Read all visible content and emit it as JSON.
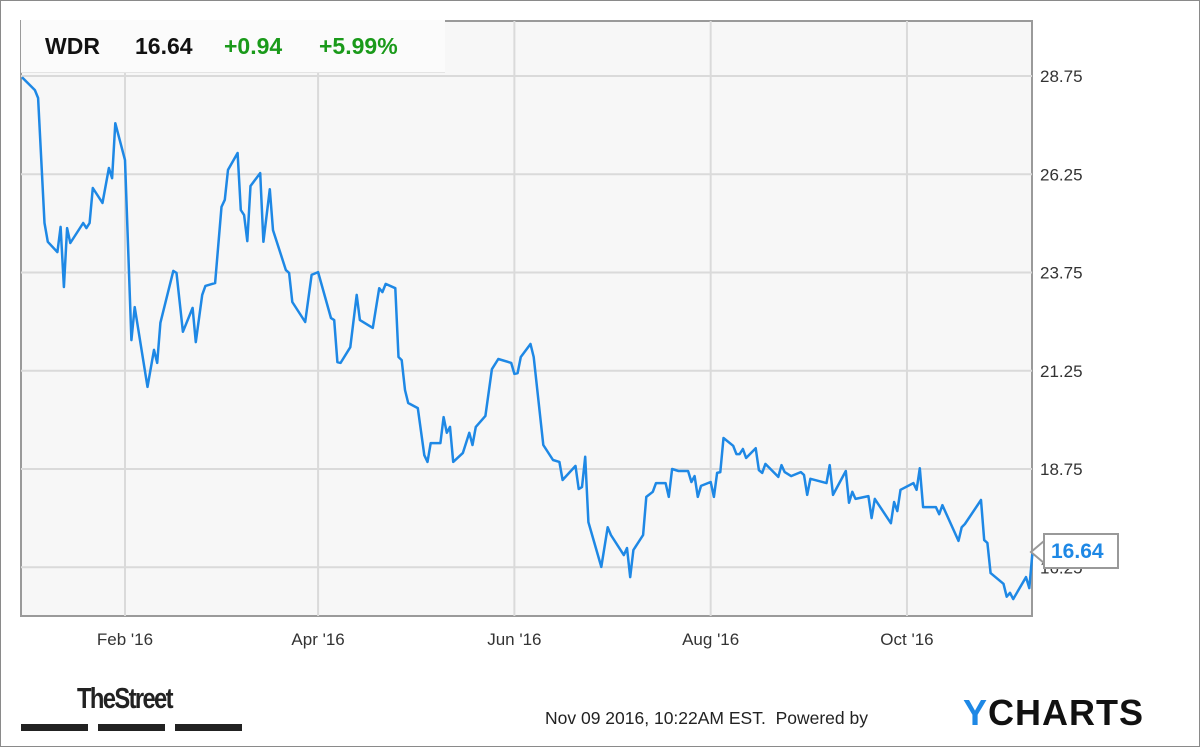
{
  "header": {
    "ticker": "WDR",
    "price": "16.64",
    "change": "+0.94",
    "change_pct": "+5.99%"
  },
  "colors": {
    "line": "#1e88e5",
    "positive": "#1a9a1a",
    "plot_bg": "#f7f7f7",
    "grid": "#d8d8d8"
  },
  "callout": {
    "value": "16.64"
  },
  "footer": {
    "timestamp": "Nov 09 2016, 10:22AM EST.",
    "powered_by": "Powered by",
    "brand_left": "TheStreet",
    "brand_right_y": "Y",
    "brand_right_rest": "CHARTS"
  },
  "chart_data": {
    "type": "line",
    "title": "",
    "xlabel": "",
    "ylabel": "",
    "ylim": [
      15.0,
      30.15
    ],
    "xlim": [
      "2015-12-31",
      "2016-11-09"
    ],
    "grid": true,
    "y_axis_position": "right",
    "yticks": [
      "28.75",
      "26.25",
      "23.75",
      "21.25",
      "18.75",
      "16.25"
    ],
    "xticks": [
      {
        "date": "2016-02-01",
        "label": "Feb '16"
      },
      {
        "date": "2016-04-01",
        "label": "Apr '16"
      },
      {
        "date": "2016-06-01",
        "label": "Jun '16"
      },
      {
        "date": "2016-08-01",
        "label": "Aug '16"
      },
      {
        "date": "2016-10-01",
        "label": "Oct '16"
      }
    ],
    "series": [
      {
        "ticker": "WDR",
        "points": [
          [
            "2015-12-31",
            28.72
          ],
          [
            "2016-01-04",
            28.39
          ],
          [
            "2016-01-05",
            28.19
          ],
          [
            "2016-01-07",
            25.01
          ],
          [
            "2016-01-08",
            24.53
          ],
          [
            "2016-01-11",
            24.27
          ],
          [
            "2016-01-12",
            24.91
          ],
          [
            "2016-01-13",
            23.38
          ],
          [
            "2016-01-14",
            24.88
          ],
          [
            "2016-01-15",
            24.5
          ],
          [
            "2016-01-19",
            25.01
          ],
          [
            "2016-01-20",
            24.88
          ],
          [
            "2016-01-21",
            25.01
          ],
          [
            "2016-01-22",
            25.9
          ],
          [
            "2016-01-25",
            25.52
          ],
          [
            "2016-01-27",
            26.41
          ],
          [
            "2016-01-28",
            26.15
          ],
          [
            "2016-01-29",
            27.55
          ],
          [
            "2016-02-01",
            26.61
          ],
          [
            "2016-02-03",
            22.03
          ],
          [
            "2016-02-04",
            22.87
          ],
          [
            "2016-02-08",
            20.84
          ],
          [
            "2016-02-10",
            21.78
          ],
          [
            "2016-02-11",
            21.45
          ],
          [
            "2016-02-12",
            22.47
          ],
          [
            "2016-02-16",
            23.79
          ],
          [
            "2016-02-17",
            23.74
          ],
          [
            "2016-02-19",
            22.24
          ],
          [
            "2016-02-22",
            22.85
          ],
          [
            "2016-02-23",
            21.98
          ],
          [
            "2016-02-25",
            23.18
          ],
          [
            "2016-02-26",
            23.41
          ],
          [
            "2016-02-29",
            23.48
          ],
          [
            "2016-03-02",
            25.42
          ],
          [
            "2016-03-03",
            25.6
          ],
          [
            "2016-03-04",
            26.36
          ],
          [
            "2016-03-07",
            26.79
          ],
          [
            "2016-03-08",
            25.34
          ],
          [
            "2016-03-09",
            25.21
          ],
          [
            "2016-03-10",
            24.55
          ],
          [
            "2016-03-11",
            25.95
          ],
          [
            "2016-03-14",
            26.28
          ],
          [
            "2016-03-15",
            24.53
          ],
          [
            "2016-03-17",
            25.87
          ],
          [
            "2016-03-18",
            24.83
          ],
          [
            "2016-03-22",
            23.81
          ],
          [
            "2016-03-23",
            23.74
          ],
          [
            "2016-03-24",
            23.0
          ],
          [
            "2016-03-28",
            22.49
          ],
          [
            "2016-03-30",
            23.69
          ],
          [
            "2016-04-01",
            23.76
          ],
          [
            "2016-04-05",
            22.59
          ],
          [
            "2016-04-06",
            22.54
          ],
          [
            "2016-04-07",
            21.47
          ],
          [
            "2016-04-08",
            21.45
          ],
          [
            "2016-04-11",
            21.85
          ],
          [
            "2016-04-13",
            23.18
          ],
          [
            "2016-04-14",
            22.54
          ],
          [
            "2016-04-18",
            22.34
          ],
          [
            "2016-04-20",
            23.35
          ],
          [
            "2016-04-21",
            23.25
          ],
          [
            "2016-04-22",
            23.46
          ],
          [
            "2016-04-25",
            23.35
          ],
          [
            "2016-04-26",
            21.6
          ],
          [
            "2016-04-27",
            21.52
          ],
          [
            "2016-04-28",
            20.76
          ],
          [
            "2016-04-29",
            20.43
          ],
          [
            "2016-05-02",
            20.3
          ],
          [
            "2016-05-04",
            19.1
          ],
          [
            "2016-05-05",
            18.93
          ],
          [
            "2016-05-06",
            19.41
          ],
          [
            "2016-05-09",
            19.41
          ],
          [
            "2016-05-10",
            20.07
          ],
          [
            "2016-05-11",
            19.67
          ],
          [
            "2016-05-12",
            19.82
          ],
          [
            "2016-05-13",
            18.93
          ],
          [
            "2016-05-16",
            19.16
          ],
          [
            "2016-05-18",
            19.67
          ],
          [
            "2016-05-19",
            19.36
          ],
          [
            "2016-05-20",
            19.82
          ],
          [
            "2016-05-23",
            20.1
          ],
          [
            "2016-05-25",
            21.29
          ],
          [
            "2016-05-27",
            21.55
          ],
          [
            "2016-05-31",
            21.45
          ],
          [
            "2016-06-01",
            21.17
          ],
          [
            "2016-06-02",
            21.19
          ],
          [
            "2016-06-03",
            21.6
          ],
          [
            "2016-06-06",
            21.93
          ],
          [
            "2016-06-07",
            21.6
          ],
          [
            "2016-06-10",
            19.36
          ],
          [
            "2016-06-13",
            18.98
          ],
          [
            "2016-06-15",
            18.93
          ],
          [
            "2016-06-16",
            18.47
          ],
          [
            "2016-06-20",
            18.83
          ],
          [
            "2016-06-21",
            18.24
          ],
          [
            "2016-06-22",
            18.29
          ],
          [
            "2016-06-23",
            19.06
          ],
          [
            "2016-06-24",
            17.4
          ],
          [
            "2016-06-28",
            16.26
          ],
          [
            "2016-06-30",
            17.27
          ],
          [
            "2016-07-01",
            17.07
          ],
          [
            "2016-07-05",
            16.56
          ],
          [
            "2016-07-06",
            16.74
          ],
          [
            "2016-07-07",
            16.0
          ],
          [
            "2016-07-08",
            16.69
          ],
          [
            "2016-07-11",
            17.07
          ],
          [
            "2016-07-12",
            18.04
          ],
          [
            "2016-07-14",
            18.17
          ],
          [
            "2016-07-15",
            18.39
          ],
          [
            "2016-07-18",
            18.39
          ],
          [
            "2016-07-19",
            18.04
          ],
          [
            "2016-07-20",
            18.75
          ],
          [
            "2016-07-22",
            18.7
          ],
          [
            "2016-07-25",
            18.7
          ],
          [
            "2016-07-26",
            18.42
          ],
          [
            "2016-07-27",
            18.57
          ],
          [
            "2016-07-28",
            18.04
          ],
          [
            "2016-07-29",
            18.32
          ],
          [
            "2016-08-01",
            18.42
          ],
          [
            "2016-08-02",
            18.04
          ],
          [
            "2016-08-03",
            18.65
          ],
          [
            "2016-08-04",
            18.67
          ],
          [
            "2016-08-05",
            19.54
          ],
          [
            "2016-08-08",
            19.34
          ],
          [
            "2016-08-09",
            19.13
          ],
          [
            "2016-08-10",
            19.13
          ],
          [
            "2016-08-11",
            19.26
          ],
          [
            "2016-08-12",
            19.03
          ],
          [
            "2016-08-15",
            19.28
          ],
          [
            "2016-08-16",
            18.72
          ],
          [
            "2016-08-17",
            18.65
          ],
          [
            "2016-08-18",
            18.88
          ],
          [
            "2016-08-22",
            18.55
          ],
          [
            "2016-08-23",
            18.85
          ],
          [
            "2016-08-24",
            18.67
          ],
          [
            "2016-08-26",
            18.57
          ],
          [
            "2016-08-29",
            18.67
          ],
          [
            "2016-08-30",
            18.6
          ],
          [
            "2016-08-31",
            18.09
          ],
          [
            "2016-09-01",
            18.5
          ],
          [
            "2016-09-06",
            18.39
          ],
          [
            "2016-09-07",
            18.85
          ],
          [
            "2016-09-08",
            18.09
          ],
          [
            "2016-09-12",
            18.7
          ],
          [
            "2016-09-13",
            17.89
          ],
          [
            "2016-09-14",
            18.17
          ],
          [
            "2016-09-15",
            17.99
          ],
          [
            "2016-09-19",
            18.06
          ],
          [
            "2016-09-20",
            17.5
          ],
          [
            "2016-09-21",
            17.99
          ],
          [
            "2016-09-26",
            17.37
          ],
          [
            "2016-09-27",
            17.91
          ],
          [
            "2016-09-28",
            17.68
          ],
          [
            "2016-09-29",
            18.22
          ],
          [
            "2016-10-03",
            18.39
          ],
          [
            "2016-10-04",
            18.22
          ],
          [
            "2016-10-05",
            18.77
          ],
          [
            "2016-10-06",
            17.78
          ],
          [
            "2016-10-10",
            17.78
          ],
          [
            "2016-10-11",
            17.6
          ],
          [
            "2016-10-12",
            17.83
          ],
          [
            "2016-10-17",
            16.92
          ],
          [
            "2016-10-18",
            17.27
          ],
          [
            "2016-10-19",
            17.35
          ],
          [
            "2016-10-24",
            17.96
          ],
          [
            "2016-10-25",
            16.94
          ],
          [
            "2016-10-26",
            16.87
          ],
          [
            "2016-10-27",
            16.1
          ],
          [
            "2016-10-31",
            15.83
          ],
          [
            "2016-11-01",
            15.5
          ],
          [
            "2016-11-02",
            15.6
          ],
          [
            "2016-11-03",
            15.44
          ],
          [
            "2016-11-07",
            16.0
          ],
          [
            "2016-11-08",
            15.72
          ],
          [
            "2016-11-09",
            16.64
          ]
        ]
      }
    ]
  }
}
